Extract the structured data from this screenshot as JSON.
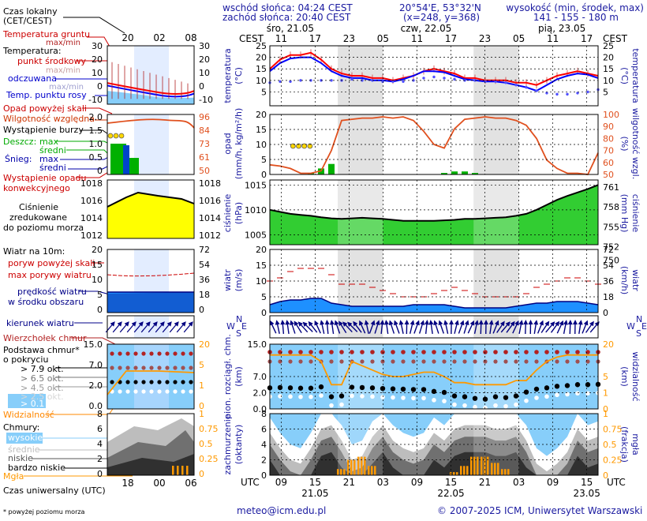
{
  "header": {
    "sunrise": "wschód słońca: 04:24 CEST",
    "sunset": "zachód słońca: 20:40 CEST",
    "coords": "20°54'E, 53°32'N",
    "grid": "(x=248, y=368)",
    "elev_title": "wysokość (min, środek, max)",
    "elev_values": "141 - 155 - 180 m"
  },
  "legend": {
    "time_local": "Czas lokalny",
    "time_local2": "(CET/CEST)",
    "soil_temp": "Temperatura gruntu",
    "soil_range": "max/min",
    "temp_title": "Temperatura:",
    "temp_mid": "punkt środkowy",
    "temp_range": "max/min",
    "temp_felt": "odczuwana",
    "temp_felt_range": "max/min",
    "dew": "Temp. punktu rosy",
    "precip_over": "Opad powyżej skali",
    "humidity": "Wilgotność względna",
    "storm": "Wystąpienie burzy",
    "rain": "Deszcz:",
    "rain_max": "max",
    "rain_mean": "średni",
    "snow": "Śnieg:",
    "snow_max": "max",
    "snow_mean": "średni",
    "conv1": "Wystąpienie opadu",
    "conv2": "konwekcyjnego",
    "press1": "Ciśnienie",
    "press2": "zredukowane",
    "press3": "do poziomu morza",
    "wind_title": "Wiatr na 10m:",
    "gust_over": "poryw powyżej skali",
    "gust_max": "max porywy wiatru",
    "wind_speed1": "prędkość wiatru",
    "wind_speed2": "w środku obszaru",
    "wind_dir": "kierunek wiatru",
    "cloud_top": "Wierzchołek chmur",
    "cloud_base1": "Podstawa chmur*",
    "cloud_base2": "o pokryciu",
    "okt1": "> 7.9 okt.",
    "okt2": "> 6.5 okt.",
    "okt3": "> 4.5 okt.",
    "okt4": "> 2.5 okt.",
    "okt5": "> 0.1 okt.",
    "visibility": "Widzialność",
    "clouds_title": "Chmury:",
    "cl_high": "wysokie",
    "cl_mid": "średnie",
    "cl_low": "niskie",
    "cl_vlow": "bardzo niskie",
    "fog": "Mgła",
    "utc_label": "Czas uniwersalny (UTC)",
    "footnote": "* powyżej poziomu morza"
  },
  "legend_axes": {
    "left_ticks": {
      "temp": [
        "30",
        "20",
        "10",
        "0",
        "-10"
      ],
      "precip": [
        "2.0",
        "1.5",
        "1.0",
        "0.5",
        "0"
      ],
      "press": [
        "1018",
        "1016",
        "1014",
        "1012"
      ],
      "wind": [
        "20",
        "15",
        "10",
        "5",
        "0"
      ],
      "cloud": [
        "15.0",
        "7.0",
        "2.0",
        "0.0"
      ],
      "cloudcov": [
        "8",
        "6",
        "4",
        "2",
        "0"
      ]
    },
    "right_ticks": {
      "temp": [
        "30",
        "20",
        "10",
        "0",
        "-10"
      ],
      "humidity": [
        "96",
        "84",
        "73",
        "61",
        "50"
      ],
      "press": [
        "1018",
        "1016",
        "1014",
        "1012"
      ],
      "wind": [
        "72",
        "54",
        "36",
        "18",
        "0"
      ],
      "visib": [
        "20",
        "5",
        "1",
        "0"
      ],
      "fog": [
        "1",
        "0.75",
        "0.5",
        "0.25",
        "0"
      ]
    },
    "top_hours": [
      "20",
      "02",
      "08"
    ],
    "bottom_hours": [
      "18",
      "00",
      "06"
    ]
  },
  "labels": {
    "temp_left": "temperatura",
    "temp_left_unit": "(°C)",
    "temp_right": "temperatura",
    "temp_right_unit": "(°C)",
    "precip_left": "opad",
    "precip_left_unit": "(mm/h, kg/m²/h)",
    "precip_right": "wilgotność wzgl.",
    "precip_right_unit": "(%)",
    "press_left": "ciśnienie",
    "press_left_unit": "(hPa)",
    "press_right": "ciśnienie",
    "press_right_unit": "(mm Hg)",
    "wind_left": "wiatr",
    "wind_left_unit": "(m/s)",
    "wind_right": "wiatr",
    "wind_right_unit": "(km/h)",
    "cloud_left": "pion. rozciągł. chm.",
    "cloud_left_unit": "(km)",
    "cloud_right": "widzialność",
    "cloud_right_unit": "(km)",
    "cov_left": "zachmurzenie",
    "cov_left_unit": "(oktanty)",
    "cov_right": "mgła",
    "cov_right_unit": "(frakcja)",
    "cest_left": "CEST",
    "cest_right": "CEST",
    "utc_left": "UTC",
    "utc_right": "UTC",
    "compass_n": "N",
    "compass_s": "S",
    "compass_w": "W",
    "compass_e": "E"
  },
  "footer": {
    "email": "meteo@icm.edu.pl",
    "copyright": "© 2007-2025 ICM, Uniwersytet Warszawski"
  },
  "colors": {
    "panel_blue": "#87cefa",
    "panel_shade": "#dcdcdc",
    "pressure_fill": "#32cd32",
    "legend_yellow": "#ffff00",
    "temp_red": "#ff0000",
    "temp_blue": "#0000ff",
    "humidity_orange": "#e0501e",
    "visib_orange": "#ff9900",
    "cloud_red": "#b22222",
    "dark_navy": "#000080",
    "title_blue": "#1a1aa0"
  },
  "chart_data": [
    {
      "type": "line",
      "name": "temperature",
      "x_day_labels": [
        "śro, 21.05",
        "czw, 22.05",
        "pią, 23.05"
      ],
      "x_hours_cest": [
        "11",
        "17",
        "23",
        "05",
        "11",
        "17",
        "23",
        "05",
        "11",
        "17"
      ],
      "x_hours_utc": [
        "09",
        "15",
        "21",
        "03",
        "09",
        "15",
        "21",
        "03",
        "09",
        "15"
      ],
      "x_dates_utc": [
        "21.05",
        "22.05",
        "23.05"
      ],
      "ylim": [
        -1,
        25
      ],
      "yticks": [
        5,
        10,
        15,
        20,
        25
      ],
      "right_yticks": [
        5,
        10,
        15,
        20,
        25
      ],
      "series": [
        {
          "values": [
            15,
            19,
            21,
            21,
            22,
            19,
            15,
            13,
            12,
            12,
            11,
            11,
            10,
            11,
            12,
            14,
            15,
            14,
            13,
            11,
            11,
            10,
            10,
            10,
            9,
            9,
            8,
            10,
            12,
            13,
            14,
            13,
            12
          ]
        },
        {
          "values": [
            14,
            17.5,
            19.5,
            20,
            20,
            17.5,
            14,
            12,
            11,
            11,
            10,
            10,
            9.5,
            10.5,
            12,
            14,
            14,
            13.5,
            12,
            10.5,
            10,
            9.5,
            9.5,
            9,
            8,
            7,
            5.5,
            8,
            10.5,
            12,
            13,
            12.5,
            11
          ]
        },
        {
          "values": [
            9,
            9.5,
            9.5,
            10,
            10,
            10,
            10,
            10,
            10.5,
            10,
            10,
            9.5,
            9.5,
            9.5,
            10,
            11,
            11.5,
            11,
            10.5,
            10,
            10,
            9.5,
            9.5,
            9,
            8,
            7,
            5.5,
            4.5,
            4,
            4,
            4.5,
            5,
            6
          ]
        }
      ]
    },
    {
      "type": "bar",
      "name": "precipitation_humidity",
      "ylim": [
        0,
        20
      ],
      "yticks": [
        0,
        5,
        10,
        15,
        20
      ],
      "right_yticks": [
        50,
        60,
        70,
        80,
        90,
        100
      ],
      "precip_mmh_max": [
        0,
        0,
        0,
        0,
        0.5,
        2,
        3.5,
        0,
        0,
        0,
        0,
        0,
        0,
        0,
        0,
        0,
        0,
        0.5,
        1,
        1,
        0.5,
        0,
        0,
        0,
        0,
        0,
        0,
        0,
        0,
        0,
        0,
        0,
        0
      ],
      "humidity_pct": [
        58,
        57,
        55,
        51,
        51,
        53,
        70,
        95,
        96,
        97,
        97,
        98,
        97,
        98,
        95,
        86,
        75,
        72,
        88,
        96,
        97,
        98,
        97,
        97,
        95,
        91,
        80,
        62,
        55,
        51,
        51,
        50,
        68
      ],
      "storm_hours_utc": [
        9,
        10,
        11,
        12
      ]
    },
    {
      "type": "area",
      "name": "pressure",
      "ylim": [
        1003,
        1016
      ],
      "yticks": [
        1005,
        1010,
        1015
      ],
      "right_yticks": [
        750,
        752,
        755,
        758,
        761
      ],
      "values": [
        1010,
        1009.6,
        1009.2,
        1009,
        1008.8,
        1008.5,
        1008.3,
        1008.2,
        1008.3,
        1008.4,
        1008.3,
        1008.2,
        1008,
        1007.8,
        1007.8,
        1007.8,
        1007.8,
        1007.9,
        1008,
        1008.2,
        1008.2,
        1008.3,
        1008.4,
        1008.5,
        1008.8,
        1009.2,
        1010,
        1011,
        1012,
        1012.8,
        1013.5,
        1014.2,
        1015
      ]
    },
    {
      "type": "area",
      "name": "wind",
      "ylim": [
        0,
        20
      ],
      "yticks": [
        0,
        5,
        10,
        15,
        20
      ],
      "right_yticks": [
        0,
        18,
        36,
        54,
        72
      ],
      "speed_ms": [
        2.5,
        3.5,
        4,
        4,
        4.5,
        4.5,
        3,
        2.5,
        2,
        2,
        2,
        2,
        2,
        2,
        2.5,
        2.5,
        2.5,
        2.5,
        2,
        1.5,
        1.5,
        1.5,
        1.5,
        1.5,
        2,
        2.5,
        3,
        3,
        3.5,
        3.5,
        3.5,
        3,
        2.5
      ],
      "gust_ms": [
        10,
        11,
        13,
        14,
        14,
        14,
        12,
        9,
        9,
        9,
        8,
        7,
        6,
        5,
        5,
        5,
        6,
        7,
        8,
        7,
        6,
        5,
        5,
        5,
        5,
        6,
        8,
        9,
        10,
        11,
        11,
        10,
        9
      ]
    },
    {
      "type": "scatter",
      "name": "cloud_base_visibility",
      "ylim": [
        0,
        15
      ],
      "yticks": [
        0,
        2,
        7,
        15
      ],
      "right_yticks": [
        0,
        1,
        5,
        20
      ],
      "cloud_base_km": [
        3.5,
        3.6,
        3.5,
        3.4,
        3.4,
        3.8,
        1.5,
        1.6,
        3.7,
        3.6,
        3.5,
        3.3,
        3.2,
        3.1,
        3,
        3,
        2.4,
        2.1,
        1.6,
        1.5,
        1.3,
        1.2,
        1.5,
        1.4,
        1.6,
        2.2,
        3.1,
        3.5,
        4,
        4.2,
        4.5,
        4.5,
        4.6
      ],
      "visibility_km": [
        15,
        15,
        15,
        15,
        15,
        12,
        3,
        3,
        12,
        10,
        8,
        6,
        5,
        5,
        6,
        7,
        7,
        5,
        3.5,
        3.5,
        3,
        3,
        3,
        3,
        4,
        4,
        8,
        12,
        14,
        15,
        15,
        15,
        15
      ]
    },
    {
      "type": "area",
      "name": "cloud_cover_fog",
      "ylim": [
        0,
        8
      ],
      "yticks": [
        0,
        2,
        4,
        6,
        8
      ],
      "right_yticks": [
        0,
        0.25,
        0.5,
        0.75,
        1
      ],
      "cloud_total_okt": [
        7,
        5,
        3.5,
        3,
        5,
        7.5,
        8,
        6,
        3.5,
        4,
        6.5,
        8,
        6,
        5,
        4.5,
        5,
        7,
        6,
        7.5,
        8,
        8,
        8,
        7.5,
        7.5,
        8,
        6,
        3,
        2,
        3,
        4.5,
        7.5,
        6,
        6.5
      ],
      "fog_fraction": [
        0,
        0,
        0,
        0,
        0,
        0,
        0,
        0.1,
        0.25,
        0.3,
        0.15,
        0,
        0,
        0,
        0,
        0,
        0,
        0,
        0.05,
        0.15,
        0.3,
        0.3,
        0.2,
        0.1,
        0,
        0,
        0,
        0,
        0,
        0,
        0,
        0,
        0
      ]
    }
  ]
}
